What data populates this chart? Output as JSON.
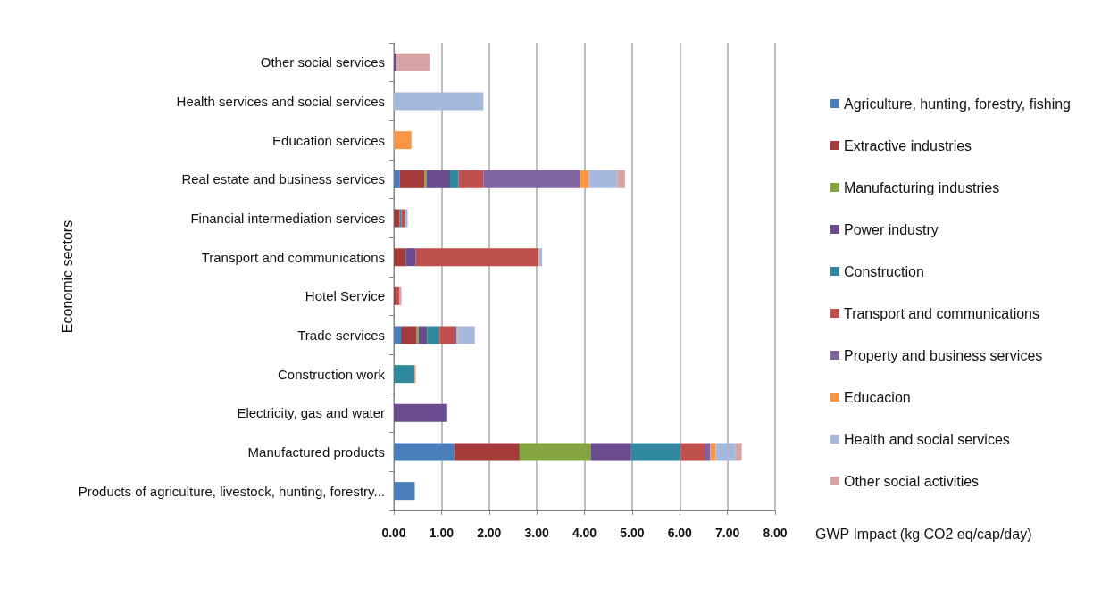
{
  "chart_data": {
    "type": "bar",
    "orientation": "horizontal",
    "stacked": true,
    "xlabel": "GWP Impact (kg CO2 eq/cap/day)",
    "ylabel": "Economic sectors",
    "categories": [
      "Other social services",
      "Health services and social services",
      "Education services",
      "Real estate and business services",
      "Financial intermediation services",
      "Transport and communications",
      "Hotel Service",
      "Trade services",
      "Construction work",
      "Electricity, gas and water",
      "Manufactured products",
      "Products of agriculture, livestock, hunting, forestry..."
    ],
    "series": [
      {
        "name": "Agriculture, hunting, forestry, fishing",
        "color": "#4a7ebb",
        "values": [
          null,
          null,
          null,
          0.12,
          null,
          null,
          null,
          0.15,
          null,
          null,
          1.27,
          0.44
        ]
      },
      {
        "name": "Extractive industries",
        "color": "#a33c3a",
        "values": [
          null,
          null,
          null,
          0.52,
          0.12,
          0.25,
          0.05,
          0.33,
          null,
          null,
          1.37,
          null
        ]
      },
      {
        "name": "Manufacturing industries",
        "color": "#85a543",
        "values": [
          null,
          null,
          null,
          0.05,
          null,
          null,
          null,
          0.04,
          null,
          null,
          1.5,
          null
        ]
      },
      {
        "name": "Power industry",
        "color": "#6b4c8f",
        "values": [
          0.05,
          null,
          null,
          0.49,
          null,
          0.21,
          null,
          0.18,
          null,
          1.12,
          0.84,
          null
        ]
      },
      {
        "name": "Construction",
        "color": "#31899f",
        "values": [
          null,
          null,
          null,
          0.18,
          0.04,
          null,
          null,
          0.26,
          0.44,
          null,
          1.04,
          null
        ]
      },
      {
        "name": "Transport and communications",
        "color": "#c0504d",
        "values": [
          null,
          null,
          null,
          0.52,
          0.08,
          2.58,
          0.07,
          0.33,
          null,
          null,
          0.5,
          null
        ]
      },
      {
        "name": "Property and business services",
        "color": "#8064a2",
        "values": [
          null,
          null,
          null,
          2.03,
          null,
          null,
          null,
          0.03,
          null,
          null,
          0.12,
          null
        ]
      },
      {
        "name": "Educacion",
        "color": "#f79646",
        "values": [
          null,
          null,
          0.37,
          0.18,
          null,
          null,
          null,
          0.02,
          0.02,
          null,
          0.11,
          null
        ]
      },
      {
        "name": "Health and social services",
        "color": "#a6b8dc",
        "values": [
          null,
          1.88,
          null,
          0.61,
          0.05,
          0.07,
          null,
          0.36,
          null,
          null,
          0.41,
          null
        ]
      },
      {
        "name": "Other social activities",
        "color": "#d9a3a6",
        "values": [
          0.7,
          null,
          null,
          0.15,
          null,
          null,
          0.04,
          null,
          null,
          null,
          0.14,
          null
        ]
      }
    ],
    "xlim": [
      0,
      8
    ],
    "xticks": [
      {
        "value": 0,
        "label": "0.00"
      },
      {
        "value": 1,
        "label": "1.00"
      },
      {
        "value": 2,
        "label": "2.00"
      },
      {
        "value": 3,
        "label": "3.00"
      },
      {
        "value": 4,
        "label": "4.00"
      },
      {
        "value": 5,
        "label": "5.00"
      },
      {
        "value": 6,
        "label": "6.00"
      },
      {
        "value": 7,
        "label": "7.00"
      },
      {
        "value": 8,
        "label": "8.00"
      }
    ],
    "grid": "x",
    "legend": "right"
  }
}
